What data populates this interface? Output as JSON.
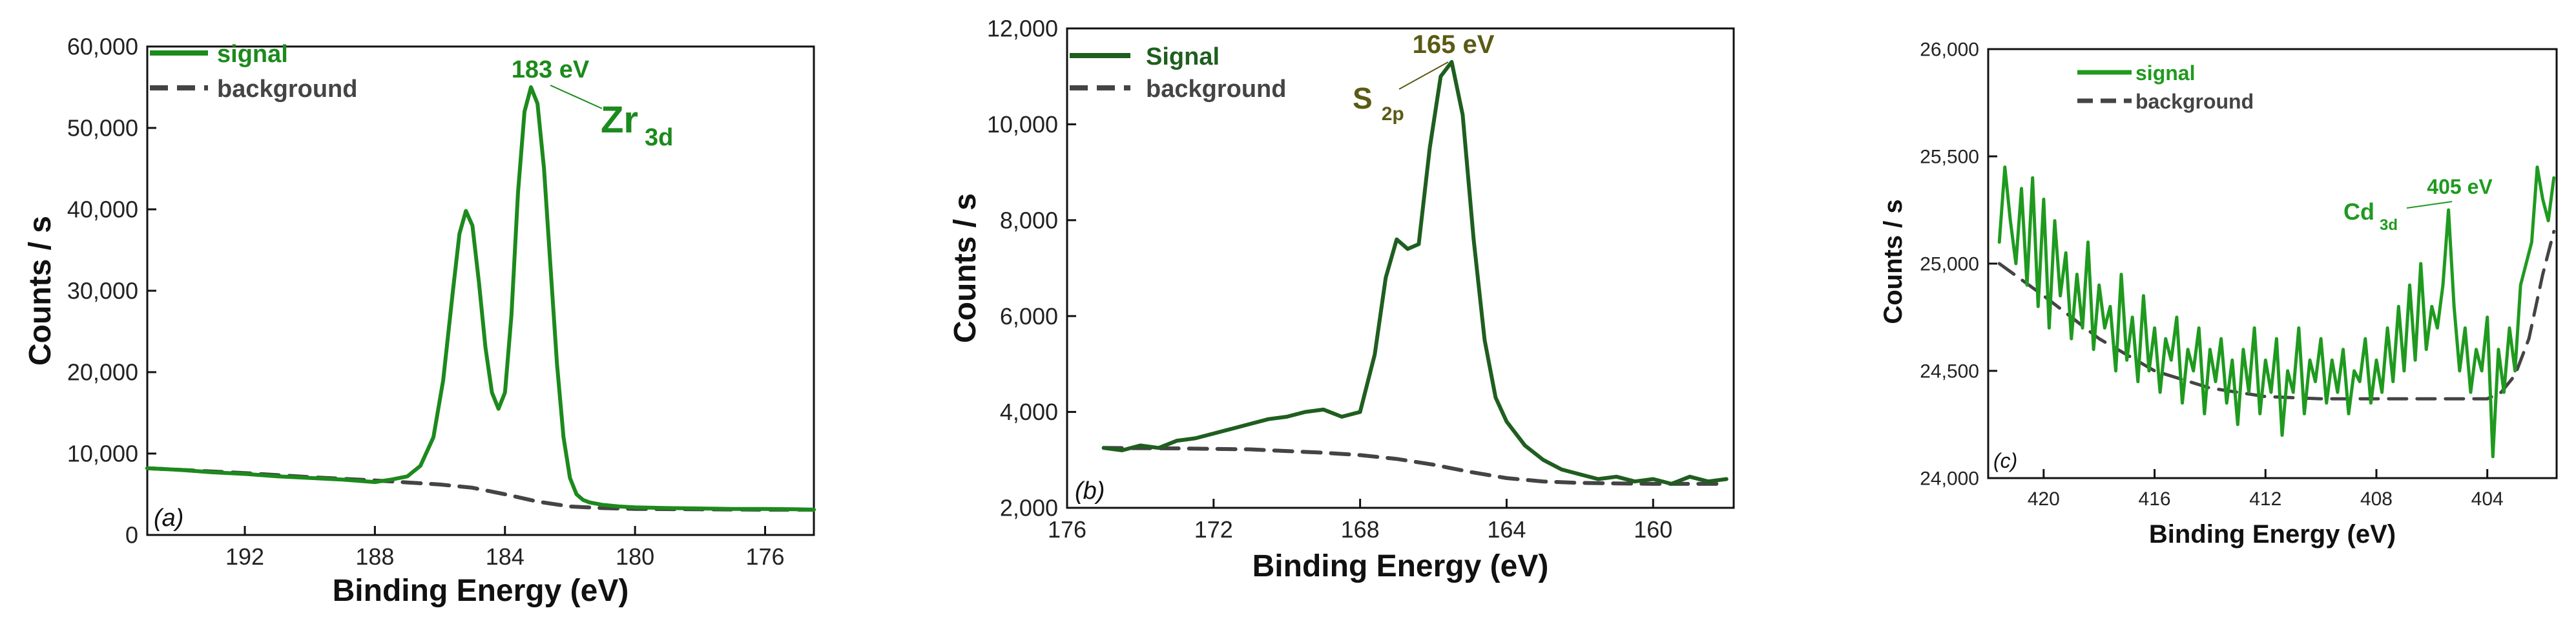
{
  "chart_data": [
    {
      "type": "line",
      "panel_label": "(a)",
      "xlabel": "Binding  Energy (eV)",
      "ylabel": "Counts / s",
      "xlim": [
        195,
        174.5
      ],
      "ylim": [
        0,
        60000
      ],
      "xticks": [
        192,
        188,
        184,
        180,
        176
      ],
      "xtick_labels": [
        "192",
        "188",
        "184",
        "180",
        "176"
      ],
      "yticks": [
        0,
        10000,
        20000,
        30000,
        40000,
        50000,
        60000
      ],
      "ytick_labels": [
        "0",
        "10,000",
        "20,000",
        "30,000",
        "40,000",
        "50,000",
        "60,000"
      ],
      "legend": [
        {
          "label": "signal",
          "color": "#1c8a1c",
          "style": "solid"
        },
        {
          "label": "background",
          "color": "#444444",
          "style": "dashed"
        }
      ],
      "annotations": [
        {
          "text": "183 eV",
          "x": 183,
          "y": 55000
        },
        {
          "text": "Zr",
          "sub": "3d",
          "x": 180.5,
          "y": 50000
        }
      ],
      "series": [
        {
          "name": "signal",
          "color": "#1c8a1c",
          "style": "solid",
          "x": [
            195,
            194,
            193,
            192,
            191,
            190,
            189,
            188,
            187.5,
            187,
            186.6,
            186.2,
            185.9,
            185.6,
            185.4,
            185.2,
            185.0,
            184.8,
            184.6,
            184.4,
            184.2,
            184.0,
            183.8,
            183.6,
            183.4,
            183.2,
            183.0,
            182.8,
            182.6,
            182.4,
            182.2,
            182.0,
            181.8,
            181.6,
            181.4,
            181.0,
            180.5,
            180,
            179,
            178,
            177,
            176,
            175,
            174.5
          ],
          "y": [
            8200,
            8000,
            7700,
            7500,
            7200,
            7000,
            6800,
            6500,
            6800,
            7200,
            8500,
            12000,
            19000,
            30000,
            37000,
            39800,
            38000,
            31000,
            23000,
            17500,
            15500,
            17500,
            27000,
            42000,
            52000,
            55000,
            53000,
            45000,
            33000,
            21000,
            12000,
            7000,
            5000,
            4300,
            4000,
            3700,
            3500,
            3400,
            3300,
            3250,
            3200,
            3200,
            3150,
            3100
          ]
        },
        {
          "name": "background",
          "color": "#444444",
          "style": "dashed",
          "x": [
            195,
            192,
            190,
            188,
            186,
            185,
            184,
            183,
            182,
            181,
            180,
            178,
            176,
            174.5
          ],
          "y": [
            8200,
            7600,
            7100,
            6700,
            6200,
            5800,
            5000,
            4100,
            3500,
            3300,
            3200,
            3150,
            3100,
            3100
          ]
        }
      ]
    },
    {
      "type": "line",
      "panel_label": "(b)",
      "xlabel": "Binding Energy (eV)",
      "ylabel": "Counts / s",
      "xlim": [
        176,
        157.8
      ],
      "ylim": [
        2000,
        12000
      ],
      "xticks": [
        176,
        172,
        168,
        164,
        160
      ],
      "xtick_labels": [
        "176",
        "172",
        "168",
        "164",
        "160"
      ],
      "yticks": [
        2000,
        4000,
        6000,
        8000,
        10000,
        12000
      ],
      "ytick_labels": [
        "2,000",
        "4,000",
        "6,000",
        "8,000",
        "10,000",
        "12,000"
      ],
      "legend": [
        {
          "label": "Signal",
          "color": "#1f5e1f",
          "style": "solid"
        },
        {
          "label": "background",
          "color": "#444444",
          "style": "dashed"
        }
      ],
      "annotations": [
        {
          "text": "165 eV",
          "x": 165.5,
          "y": 11300
        },
        {
          "text": "S",
          "sub": "2p",
          "x": 169,
          "y": 10500
        }
      ],
      "series": [
        {
          "name": "Signal",
          "color": "#1f5e1f",
          "style": "solid",
          "x": [
            175,
            174.5,
            174,
            173.5,
            173,
            172.5,
            172,
            171.5,
            171,
            170.5,
            170,
            169.5,
            169,
            168.5,
            168,
            167.6,
            167.3,
            167.0,
            166.7,
            166.4,
            166.1,
            165.8,
            165.5,
            165.2,
            164.9,
            164.6,
            164.3,
            164.0,
            163.5,
            163,
            162.5,
            162,
            161.5,
            161,
            160.5,
            160,
            159.5,
            159,
            158.5,
            158
          ],
          "y": [
            3250,
            3200,
            3300,
            3250,
            3400,
            3450,
            3550,
            3650,
            3750,
            3850,
            3900,
            4000,
            4050,
            3900,
            4000,
            5200,
            6800,
            7600,
            7400,
            7500,
            9500,
            11000,
            11300,
            10200,
            7600,
            5500,
            4300,
            3800,
            3300,
            3000,
            2800,
            2700,
            2600,
            2650,
            2550,
            2600,
            2500,
            2650,
            2550,
            2600
          ]
        },
        {
          "name": "background",
          "color": "#444444",
          "style": "dashed",
          "x": [
            175,
            173,
            171,
            169,
            168,
            167,
            166,
            165,
            164,
            163,
            162,
            161,
            160,
            159,
            158
          ],
          "y": [
            3250,
            3240,
            3220,
            3150,
            3100,
            3020,
            2900,
            2750,
            2620,
            2550,
            2520,
            2510,
            2500,
            2500,
            2500
          ]
        }
      ]
    },
    {
      "type": "line",
      "panel_label": "(c)",
      "xlabel": "Binding Energy (eV)",
      "ylabel": "Counts / s",
      "xlim": [
        422,
        401.5
      ],
      "ylim": [
        24000,
        26000
      ],
      "xticks": [
        420,
        416,
        412,
        408,
        404
      ],
      "xtick_labels": [
        "420",
        "416",
        "412",
        "408",
        "404"
      ],
      "yticks": [
        24000,
        24500,
        25000,
        25500,
        26000
      ],
      "ytick_labels": [
        "24,000",
        "24,500",
        "25,000",
        "25,500",
        "26,000"
      ],
      "legend": [
        {
          "label": "signal",
          "color": "#1f9a1f",
          "style": "solid"
        },
        {
          "label": "background",
          "color": "#444444",
          "style": "dashed"
        }
      ],
      "annotations": [
        {
          "text": "405 eV",
          "x": 405.3,
          "y": 25300
        },
        {
          "text": "Cd",
          "sub": "3d",
          "x": 408.5,
          "y": 25200
        }
      ],
      "series": [
        {
          "name": "signal",
          "color": "#1f9a1f",
          "style": "solid",
          "x": [
            421.6,
            421.4,
            421.2,
            421.0,
            420.8,
            420.6,
            420.4,
            420.2,
            420.0,
            419.8,
            419.6,
            419.4,
            419.2,
            419.0,
            418.8,
            418.6,
            418.4,
            418.2,
            418.0,
            417.8,
            417.6,
            417.4,
            417.2,
            417.0,
            416.8,
            416.6,
            416.4,
            416.2,
            416.0,
            415.8,
            415.6,
            415.4,
            415.2,
            415.0,
            414.8,
            414.6,
            414.4,
            414.2,
            414.0,
            413.8,
            413.6,
            413.4,
            413.2,
            413.0,
            412.8,
            412.6,
            412.4,
            412.2,
            412.0,
            411.8,
            411.6,
            411.4,
            411.2,
            411.0,
            410.8,
            410.6,
            410.4,
            410.2,
            410.0,
            409.8,
            409.6,
            409.4,
            409.2,
            409.0,
            408.8,
            408.6,
            408.4,
            408.2,
            408.0,
            407.8,
            407.6,
            407.4,
            407.2,
            407.0,
            406.8,
            406.6,
            406.4,
            406.2,
            406.0,
            405.8,
            405.6,
            405.4,
            405.2,
            405.0,
            404.8,
            404.6,
            404.4,
            404.2,
            404.0,
            403.8,
            403.6,
            403.4,
            403.2,
            403.0,
            402.8,
            402.6,
            402.4,
            402.2,
            402.0,
            401.8,
            401.6
          ],
          "y": [
            25100,
            25450,
            25200,
            25000,
            25350,
            24900,
            25400,
            24800,
            25300,
            24700,
            25200,
            24850,
            25050,
            24650,
            24950,
            24700,
            25100,
            24600,
            24900,
            24700,
            24800,
            24500,
            24950,
            24550,
            24750,
            24450,
            24850,
            24500,
            24700,
            24400,
            24650,
            24550,
            24750,
            24350,
            24600,
            24500,
            24700,
            24300,
            24600,
            24450,
            24650,
            24350,
            24550,
            24250,
            24600,
            24400,
            24700,
            24300,
            24550,
            24400,
            24650,
            24200,
            24500,
            24400,
            24700,
            24300,
            24550,
            24450,
            24650,
            24350,
            24550,
            24400,
            24600,
            24300,
            24500,
            24450,
            24650,
            24350,
            24550,
            24400,
            24700,
            24450,
            24800,
            24500,
            24900,
            24550,
            25000,
            24600,
            24800,
            24700,
            24900,
            25250,
            24800,
            24500,
            24700,
            24400,
            24600,
            24500,
            24750,
            24100,
            24600,
            24400,
            24700,
            24500,
            24900,
            25000,
            25100,
            25450,
            25300,
            25200,
            25400
          ]
        },
        {
          "name": "background",
          "color": "#444444",
          "style": "dashed",
          "x": [
            421.6,
            420,
            418,
            416,
            414,
            412,
            410,
            408,
            406,
            404.5,
            404,
            403.5,
            403,
            402.5,
            402,
            401.6
          ],
          "y": [
            25000,
            24850,
            24650,
            24500,
            24420,
            24380,
            24370,
            24370,
            24370,
            24370,
            24370,
            24400,
            24480,
            24650,
            24950,
            25150
          ]
        }
      ]
    }
  ]
}
